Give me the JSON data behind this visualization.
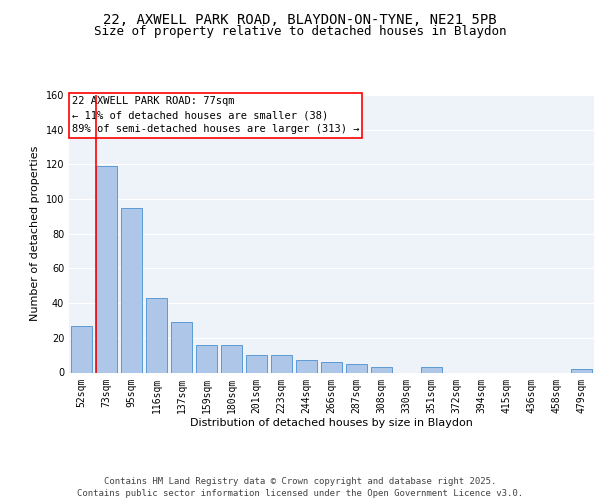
{
  "title": "22, AXWELL PARK ROAD, BLAYDON-ON-TYNE, NE21 5PB",
  "subtitle": "Size of property relative to detached houses in Blaydon",
  "xlabel": "Distribution of detached houses by size in Blaydon",
  "ylabel": "Number of detached properties",
  "categories": [
    "52sqm",
    "73sqm",
    "95sqm",
    "116sqm",
    "137sqm",
    "159sqm",
    "180sqm",
    "201sqm",
    "223sqm",
    "244sqm",
    "266sqm",
    "287sqm",
    "308sqm",
    "330sqm",
    "351sqm",
    "372sqm",
    "394sqm",
    "415sqm",
    "436sqm",
    "458sqm",
    "479sqm"
  ],
  "values": [
    27,
    119,
    95,
    43,
    29,
    16,
    16,
    10,
    10,
    7,
    6,
    5,
    3,
    0,
    3,
    0,
    0,
    0,
    0,
    0,
    2
  ],
  "bar_color": "#aec6e8",
  "bar_edge_color": "#5b9bd5",
  "red_line_index": 1,
  "annotation_title": "22 AXWELL PARK ROAD: 77sqm",
  "annotation_line1": "← 11% of detached houses are smaller (38)",
  "annotation_line2": "89% of semi-detached houses are larger (313) →",
  "ylim": [
    0,
    160
  ],
  "yticks": [
    0,
    20,
    40,
    60,
    80,
    100,
    120,
    140,
    160
  ],
  "background_color": "#eef2f9",
  "grid_color": "#ffffff",
  "footer": "Contains HM Land Registry data © Crown copyright and database right 2025.\nContains public sector information licensed under the Open Government Licence v3.0.",
  "title_fontsize": 10,
  "subtitle_fontsize": 9,
  "axis_label_fontsize": 8,
  "tick_fontsize": 7,
  "annotation_fontsize": 7.5,
  "footer_fontsize": 6.5
}
